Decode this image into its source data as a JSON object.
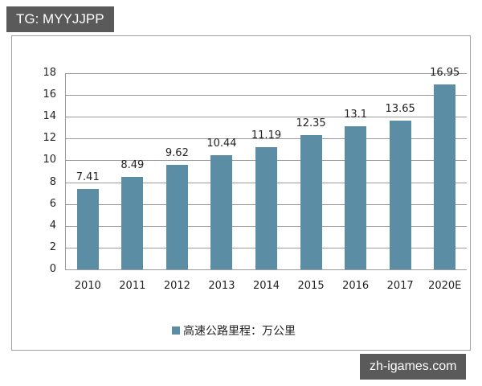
{
  "watermarks": {
    "top": "TG: MYYJJPP",
    "bottom": "zh-igames.com"
  },
  "colors": {
    "bar": "#5b8ea5",
    "grid": "#9a9a9a"
  },
  "chart_data": {
    "type": "bar",
    "title": "",
    "xlabel": "",
    "ylabel": "",
    "categories": [
      "2010",
      "2011",
      "2012",
      "2013",
      "2014",
      "2015",
      "2016",
      "2017",
      "2020E"
    ],
    "series": [
      {
        "name": "高速公路里程：万公里",
        "values": [
          7.41,
          8.49,
          9.62,
          10.44,
          11.19,
          12.35,
          13.1,
          13.65,
          16.95
        ],
        "labels": [
          "7.41",
          "8.49",
          "9.62",
          "10.44",
          "11.19",
          "12.35",
          "13.1",
          "13.65",
          "16.95"
        ]
      }
    ],
    "ylim": [
      0,
      18
    ],
    "yticks": [
      "0",
      "2",
      "4",
      "6",
      "8",
      "10",
      "12",
      "14",
      "16",
      "18"
    ],
    "grid": true,
    "legend_position": "bottom",
    "legend": [
      "高速公路里程：万公里"
    ]
  }
}
